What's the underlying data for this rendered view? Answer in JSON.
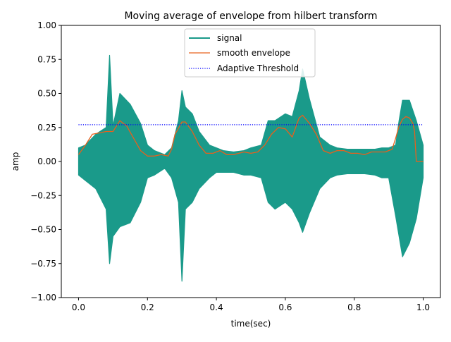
{
  "chart_data": {
    "type": "line",
    "title": "Moving average of envelope from hilbert transform",
    "xlabel": "time(sec)",
    "ylabel": "amp",
    "xlim": [
      -0.05,
      1.05
    ],
    "ylim": [
      -1.0,
      1.0
    ],
    "x_ticks": [
      0.0,
      0.2,
      0.4,
      0.6,
      0.8,
      1.0
    ],
    "x_tick_labels": [
      "0.0",
      "0.2",
      "0.4",
      "0.6",
      "0.8",
      "1.0"
    ],
    "y_ticks": [
      -1.0,
      -0.75,
      -0.5,
      -0.25,
      0.0,
      0.25,
      0.5,
      0.75,
      1.0
    ],
    "y_tick_labels": [
      "−1.00",
      "−0.75",
      "−0.50",
      "−0.25",
      "0.00",
      "0.25",
      "0.50",
      "0.75",
      "1.00"
    ],
    "grid": false,
    "legend": "upper center",
    "series": [
      {
        "name": "signal",
        "style": "solid",
        "color": "#1a9a8a",
        "x": [
          0.0,
          0.02,
          0.05,
          0.08,
          0.09,
          0.1,
          0.12,
          0.15,
          0.18,
          0.2,
          0.22,
          0.25,
          0.27,
          0.29,
          0.3,
          0.31,
          0.33,
          0.35,
          0.38,
          0.4,
          0.42,
          0.45,
          0.48,
          0.5,
          0.53,
          0.55,
          0.57,
          0.6,
          0.62,
          0.64,
          0.65,
          0.67,
          0.7,
          0.73,
          0.75,
          0.78,
          0.8,
          0.83,
          0.86,
          0.88,
          0.9,
          0.92,
          0.93,
          0.94,
          0.96,
          0.98,
          1.0
        ],
        "upper": [
          0.1,
          0.12,
          0.2,
          0.25,
          0.78,
          0.26,
          0.5,
          0.42,
          0.28,
          0.12,
          0.08,
          0.05,
          0.1,
          0.3,
          0.52,
          0.4,
          0.35,
          0.22,
          0.12,
          0.1,
          0.08,
          0.07,
          0.08,
          0.1,
          0.12,
          0.3,
          0.3,
          0.35,
          0.33,
          0.52,
          0.68,
          0.46,
          0.18,
          0.12,
          0.1,
          0.09,
          0.09,
          0.09,
          0.09,
          0.1,
          0.1,
          0.12,
          0.3,
          0.45,
          0.45,
          0.3,
          0.12
        ],
        "lower": [
          -0.1,
          -0.14,
          -0.2,
          -0.35,
          -0.75,
          -0.55,
          -0.48,
          -0.45,
          -0.3,
          -0.12,
          -0.1,
          -0.05,
          -0.12,
          -0.3,
          -0.88,
          -0.35,
          -0.3,
          -0.2,
          -0.12,
          -0.08,
          -0.08,
          -0.08,
          -0.1,
          -0.1,
          -0.12,
          -0.3,
          -0.35,
          -0.3,
          -0.35,
          -0.45,
          -0.52,
          -0.38,
          -0.2,
          -0.12,
          -0.1,
          -0.09,
          -0.09,
          -0.09,
          -0.1,
          -0.12,
          -0.12,
          -0.4,
          -0.55,
          -0.7,
          -0.6,
          -0.42,
          -0.12
        ]
      },
      {
        "name": "smooth envelope",
        "style": "solid",
        "color": "#e8601c",
        "x": [
          0.0,
          0.02,
          0.04,
          0.06,
          0.08,
          0.1,
          0.12,
          0.14,
          0.16,
          0.18,
          0.2,
          0.22,
          0.24,
          0.26,
          0.27,
          0.28,
          0.3,
          0.31,
          0.33,
          0.35,
          0.37,
          0.39,
          0.41,
          0.43,
          0.45,
          0.48,
          0.5,
          0.52,
          0.54,
          0.56,
          0.58,
          0.6,
          0.62,
          0.64,
          0.65,
          0.67,
          0.69,
          0.71,
          0.73,
          0.75,
          0.77,
          0.79,
          0.81,
          0.83,
          0.85,
          0.87,
          0.89,
          0.91,
          0.92,
          0.93,
          0.94,
          0.95,
          0.96,
          0.97,
          0.975,
          0.98,
          0.99,
          1.0
        ],
        "y": [
          0.05,
          0.12,
          0.2,
          0.21,
          0.22,
          0.22,
          0.3,
          0.26,
          0.17,
          0.08,
          0.04,
          0.04,
          0.05,
          0.04,
          0.09,
          0.2,
          0.29,
          0.29,
          0.22,
          0.12,
          0.06,
          0.06,
          0.08,
          0.05,
          0.05,
          0.07,
          0.06,
          0.07,
          0.12,
          0.2,
          0.25,
          0.24,
          0.18,
          0.32,
          0.34,
          0.28,
          0.2,
          0.08,
          0.06,
          0.08,
          0.08,
          0.06,
          0.06,
          0.05,
          0.07,
          0.07,
          0.07,
          0.09,
          0.17,
          0.26,
          0.31,
          0.33,
          0.32,
          0.28,
          0.22,
          0.0,
          0.0,
          0.0
        ]
      },
      {
        "name": "Adaptive Threshold",
        "style": "dotted",
        "color": "#0000ff",
        "x": [
          0.0,
          1.0
        ],
        "y": [
          0.27,
          0.27
        ]
      }
    ]
  }
}
